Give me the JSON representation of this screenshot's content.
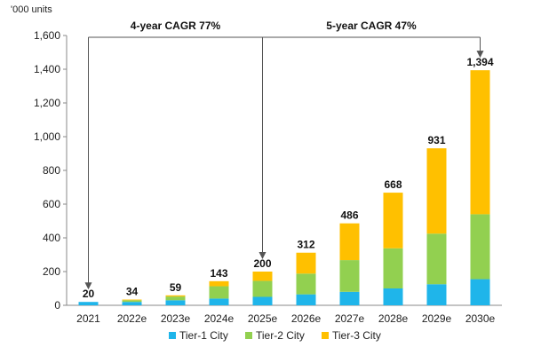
{
  "chart_data": {
    "type": "bar",
    "stacked": true,
    "unit_label": "'000 units",
    "categories": [
      "2021",
      "2022e",
      "2023e",
      "2024e",
      "2025e",
      "2026e",
      "2027e",
      "2028e",
      "2029e",
      "2030e"
    ],
    "series": [
      {
        "name": "Tier-1 City",
        "color": "#1fb5ea",
        "values": [
          20,
          20,
          30,
          40,
          50,
          65,
          80,
          100,
          125,
          155
        ]
      },
      {
        "name": "Tier-2 City",
        "color": "#92d050",
        "values": [
          0,
          10,
          22,
          73,
          95,
          123,
          188,
          238,
          300,
          385
        ]
      },
      {
        "name": "Tier-3 City",
        "color": "#ffc000",
        "values": [
          0,
          4,
          7,
          30,
          55,
          124,
          218,
          330,
          506,
          854
        ]
      }
    ],
    "totals": [
      20,
      34,
      59,
      143,
      200,
      312,
      486,
      668,
      931,
      1394
    ],
    "total_labels": [
      "20",
      "34",
      "59",
      "143",
      "200",
      "312",
      "486",
      "668",
      "931",
      "1,394"
    ],
    "ylim": [
      0,
      1600
    ],
    "yticks": [
      0,
      200,
      400,
      600,
      800,
      1000,
      1200,
      1400,
      1600
    ],
    "ytick_labels": [
      "0",
      "200",
      "400",
      "600",
      "800",
      "1,000",
      "1,200",
      "1,400",
      "1,600"
    ],
    "annotations": [
      {
        "text": "4-year CAGR 77%",
        "from": "2021",
        "to": "2025e"
      },
      {
        "text": "5-year CAGR 47%",
        "from": "2025e",
        "to": "2030e"
      }
    ],
    "legend_position": "bottom",
    "grid": false,
    "axis_color": "#888888",
    "annotation_color": "#555555"
  }
}
